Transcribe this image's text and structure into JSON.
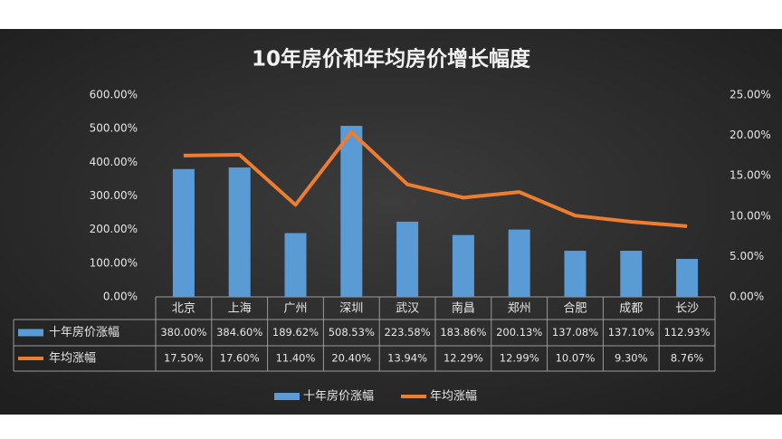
{
  "chart_data": {
    "type": "combo",
    "title": "10年房价和年均房价增长幅度",
    "categories": [
      "北京",
      "上海",
      "广州",
      "深圳",
      "武汉",
      "南昌",
      "郑州",
      "合肥",
      "成都",
      "长沙"
    ],
    "series": [
      {
        "name": "十年房价涨幅",
        "type": "bar",
        "color": "#5b9bd5",
        "values": [
          380,
          384.6,
          189.62,
          508.53,
          223.58,
          183.86,
          200.13,
          137.08,
          137.1,
          112.93
        ],
        "value_labels": [
          "380.00%",
          "384.60%",
          "189.62%",
          "508.53%",
          "223.58%",
          "183.86%",
          "200.13%",
          "137.08%",
          "137.10%",
          "112.93%"
        ]
      },
      {
        "name": "年均涨幅",
        "type": "line",
        "axis": "y2",
        "color": "#ed7d31",
        "values": [
          17.5,
          17.6,
          11.4,
          20.4,
          13.94,
          12.29,
          12.99,
          10.07,
          9.3,
          8.76
        ],
        "value_labels": [
          "17.50%",
          "17.60%",
          "11.40%",
          "20.40%",
          "13.94%",
          "12.29%",
          "12.99%",
          "10.07%",
          "9.30%",
          "8.76%"
        ]
      }
    ],
    "ylim": [
      0,
      600
    ],
    "yticks": [
      {
        "value": 0,
        "label": "0.00%"
      },
      {
        "value": 100,
        "label": "100.00%"
      },
      {
        "value": 200,
        "label": "200.00%"
      },
      {
        "value": 300,
        "label": "300.00%"
      },
      {
        "value": 400,
        "label": "400.00%"
      },
      {
        "value": 500,
        "label": "500.00%"
      },
      {
        "value": 600,
        "label": "600.00%"
      }
    ],
    "y2lim": [
      0,
      25
    ],
    "y2ticks": [
      {
        "value": 0,
        "label": "0.00%"
      },
      {
        "value": 5,
        "label": "5.00%"
      },
      {
        "value": 10,
        "label": "10.00%"
      },
      {
        "value": 15,
        "label": "15.00%"
      },
      {
        "value": 20,
        "label": "20.00%"
      },
      {
        "value": 25,
        "label": "25.00%"
      }
    ],
    "grid": false
  }
}
